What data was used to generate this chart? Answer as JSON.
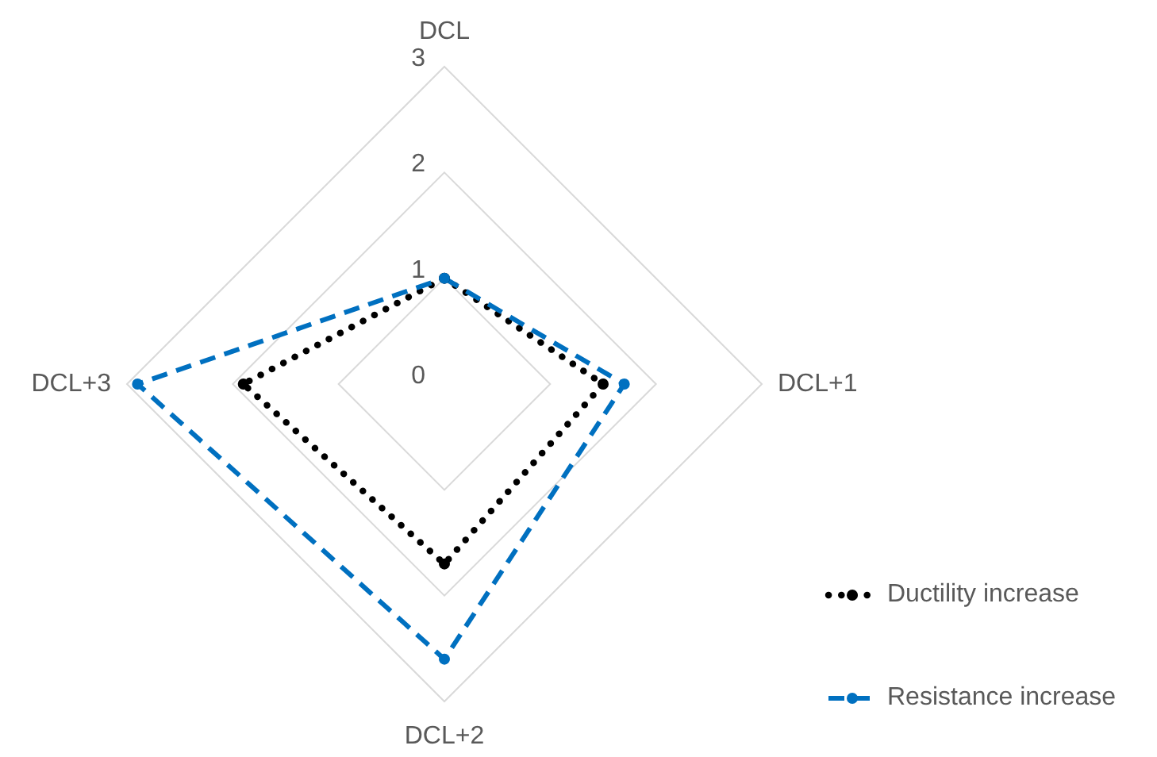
{
  "chart_data": {
    "type": "radar",
    "categories": [
      "DCL",
      "DCL+1",
      "DCL+2",
      "DCL+3"
    ],
    "series": [
      {
        "name": "Ductility increase",
        "color": "#000000",
        "values": [
          1.0,
          1.5,
          1.7,
          1.9
        ],
        "line_style": "dotted"
      },
      {
        "name": "Resistance increase",
        "color": "#0070c0",
        "values": [
          1.0,
          1.7,
          2.6,
          2.9
        ],
        "line_style": "dashed"
      }
    ],
    "ylim": [
      0,
      3
    ],
    "yticks": [
      0,
      1,
      2,
      3
    ],
    "grid": true,
    "legend": "bottom right",
    "marker": "circle"
  }
}
